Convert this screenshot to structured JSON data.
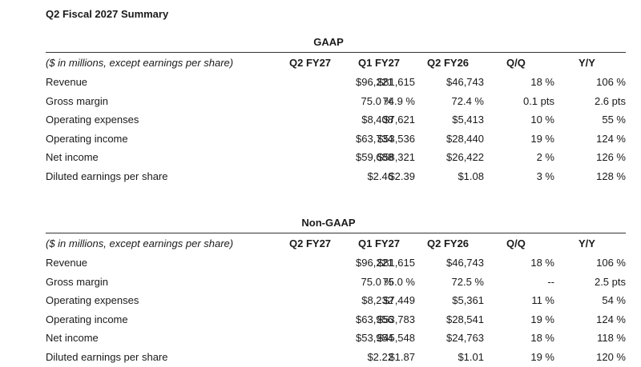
{
  "title": "Q2 Fiscal 2027 Summary",
  "columns": [
    "Q2 FY27",
    "Q1 FY27",
    "Q2 FY26",
    "Q/Q",
    "Y/Y"
  ],
  "units_note": "($ in millions, except earnings per share)",
  "gaap": {
    "title": "GAAP",
    "rows": [
      {
        "label": "Revenue",
        "values": [
          "$96,221",
          "$81,615",
          "$46,743",
          "18 %",
          "106 %"
        ]
      },
      {
        "label": "Gross margin",
        "values": [
          "75.0 %",
          "74.9 %",
          "72.4 %",
          "0.1 pts",
          "2.6 pts"
        ]
      },
      {
        "label": "Operating expenses",
        "values": [
          "$8,408",
          "$7,621",
          "$5,413",
          "10 %",
          "55 %"
        ]
      },
      {
        "label": "Operating income",
        "values": [
          "$63,734",
          "$53,536",
          "$28,440",
          "19 %",
          "124 %"
        ]
      },
      {
        "label": "Net income",
        "values": [
          "$59,688",
          "$58,321",
          "$26,422",
          "2 %",
          "126 %"
        ]
      },
      {
        "label": "Diluted earnings per share",
        "values": [
          "$2.46",
          "$2.39",
          "$1.08",
          "3 %",
          "128 %"
        ]
      }
    ]
  },
  "nongaap": {
    "title": "Non-GAAP",
    "rows": [
      {
        "label": "Revenue",
        "values": [
          "$96,221",
          "$81,615",
          "$46,743",
          "18 %",
          "106 %"
        ]
      },
      {
        "label": "Gross margin",
        "values": [
          "75.0 %",
          "75.0 %",
          "72.5 %",
          "--",
          "2.5 pts"
        ]
      },
      {
        "label": "Operating expenses",
        "values": [
          "$8,232",
          "$7,449",
          "$5,361",
          "11 %",
          "54 %"
        ]
      },
      {
        "label": "Operating income",
        "values": [
          "$63,956",
          "$53,783",
          "$28,541",
          "19 %",
          "124 %"
        ]
      },
      {
        "label": "Net income",
        "values": [
          "$53,954",
          "$45,548",
          "$24,763",
          "18 %",
          "118 %"
        ]
      },
      {
        "label": "Diluted earnings per share",
        "values": [
          "$2.22",
          "$1.87",
          "$1.01",
          "19 %",
          "120 %"
        ]
      }
    ]
  }
}
